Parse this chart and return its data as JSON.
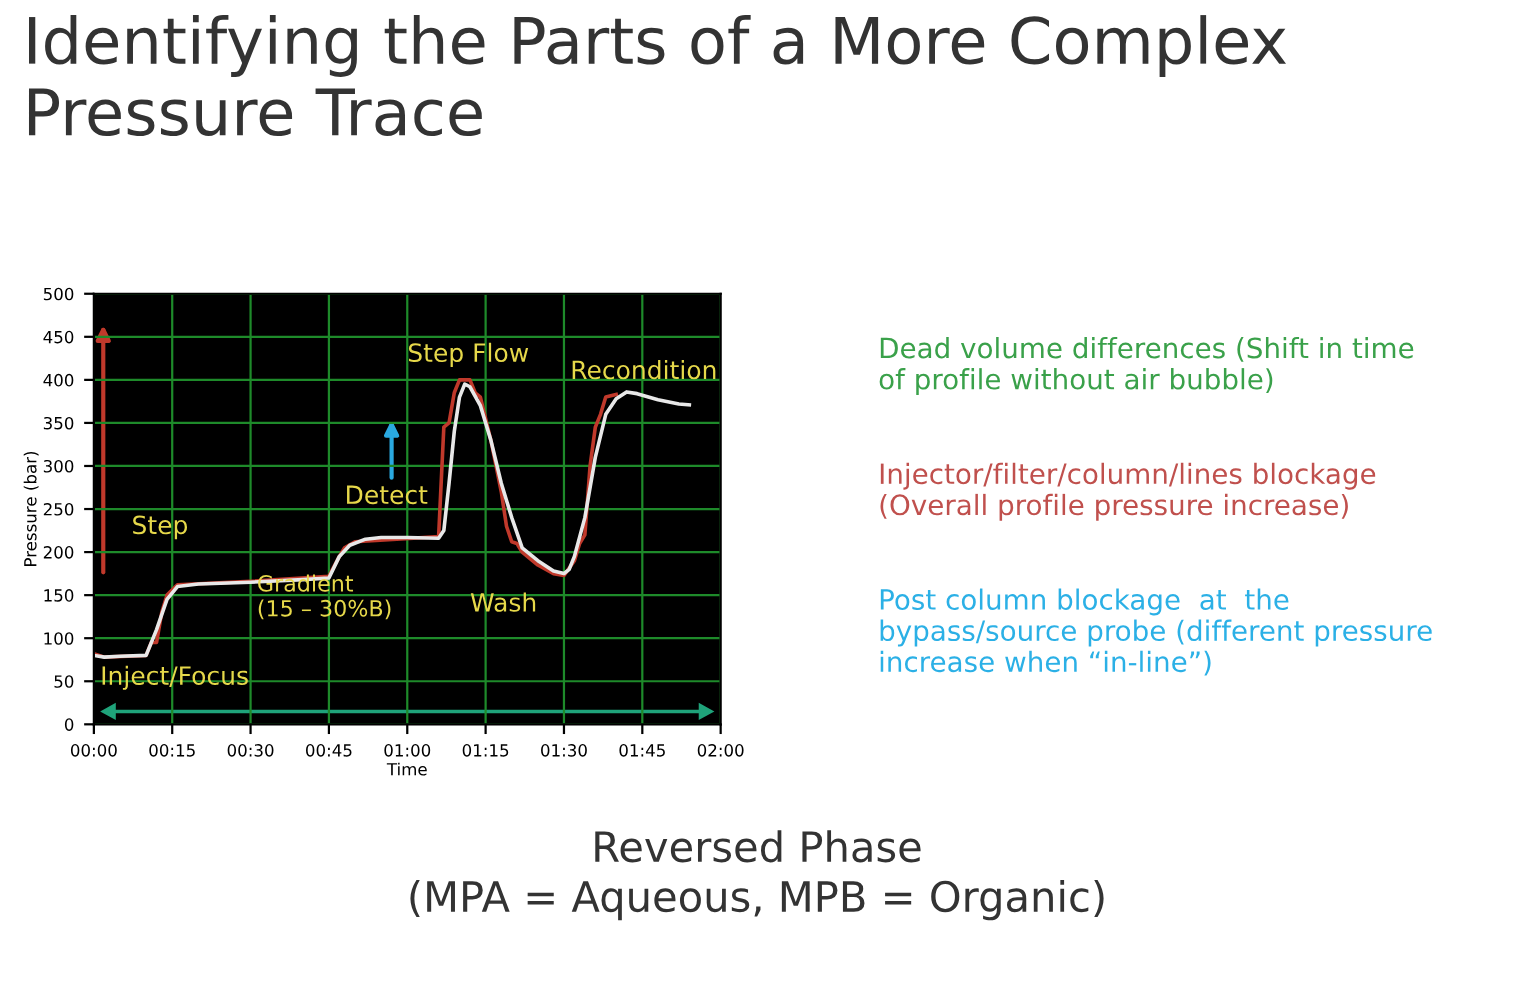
{
  "chart_data": {
    "type": "line",
    "title": "Identifying the Parts of a More Complex Pressure Trace",
    "xlabel": "Time",
    "ylabel": "Pressure (bar)",
    "xlim": [
      0,
      120
    ],
    "ylim": [
      0,
      500
    ],
    "xticks": [
      {
        "value": 0,
        "label": "00:00"
      },
      {
        "value": 15,
        "label": "00:15"
      },
      {
        "value": 30,
        "label": "00:30"
      },
      {
        "value": 45,
        "label": "00:45"
      },
      {
        "value": 60,
        "label": "01:00"
      },
      {
        "value": 75,
        "label": "01:15"
      },
      {
        "value": 90,
        "label": "01:30"
      },
      {
        "value": 105,
        "label": "01:45"
      },
      {
        "value": 120,
        "label": "02:00"
      }
    ],
    "yticks": [
      0,
      50,
      100,
      150,
      200,
      250,
      300,
      350,
      400,
      450,
      500
    ],
    "grid": true,
    "legend": false,
    "marker": "none",
    "line_style": "solid",
    "series": [
      {
        "color": "#c0392b",
        "x": [
          0,
          2,
          10,
          11,
          12,
          13,
          14,
          16,
          30,
          45,
          47,
          48,
          50,
          66,
          67,
          68,
          69,
          70,
          72,
          73,
          74,
          76,
          78,
          79,
          80,
          81,
          82,
          85,
          88,
          90,
          92,
          93,
          94,
          95,
          96,
          97,
          98,
          100
        ],
        "values": [
          82,
          78,
          80,
          95,
          95,
          130,
          150,
          162,
          166,
          172,
          195,
          205,
          212,
          218,
          345,
          350,
          385,
          400,
          400,
          385,
          380,
          330,
          270,
          230,
          212,
          210,
          200,
          185,
          175,
          173,
          190,
          210,
          220,
          300,
          345,
          360,
          380,
          383
        ]
      },
      {
        "color": "#e8e8e8",
        "x": [
          0,
          2,
          5,
          10,
          12,
          14,
          16,
          20,
          30,
          40,
          45,
          47,
          49,
          52,
          55,
          60,
          66,
          67,
          68,
          69,
          70,
          71,
          72,
          74,
          76,
          78,
          80,
          82,
          85,
          88,
          90,
          91,
          92,
          94,
          96,
          98,
          100,
          102,
          104,
          108,
          112,
          114
        ],
        "values": [
          80,
          78,
          79,
          80,
          110,
          145,
          160,
          163,
          165,
          168,
          170,
          195,
          208,
          215,
          217,
          217,
          216,
          225,
          280,
          340,
          380,
          395,
          392,
          370,
          330,
          280,
          240,
          205,
          190,
          178,
          175,
          180,
          195,
          240,
          310,
          360,
          378,
          386,
          384,
          377,
          372,
          371
        ]
      }
    ],
    "annotations": [
      "Inject/Focus",
      "Step",
      "Gradient\n(15 – 30%B)",
      "Detect",
      "Step Flow",
      "Wash",
      "Recondition",
      "Dead volume differences (Shift in time of profile without air bubble)",
      "Injector/filter/column/lines blockage (Overall profile pressure increase)",
      "Post column blockage  at  the bypass/source probe (different pressure increase when “in-line”)",
      "Reversed Phase\n(MPA = Aqueous, MPB = Organic)"
    ]
  }
}
